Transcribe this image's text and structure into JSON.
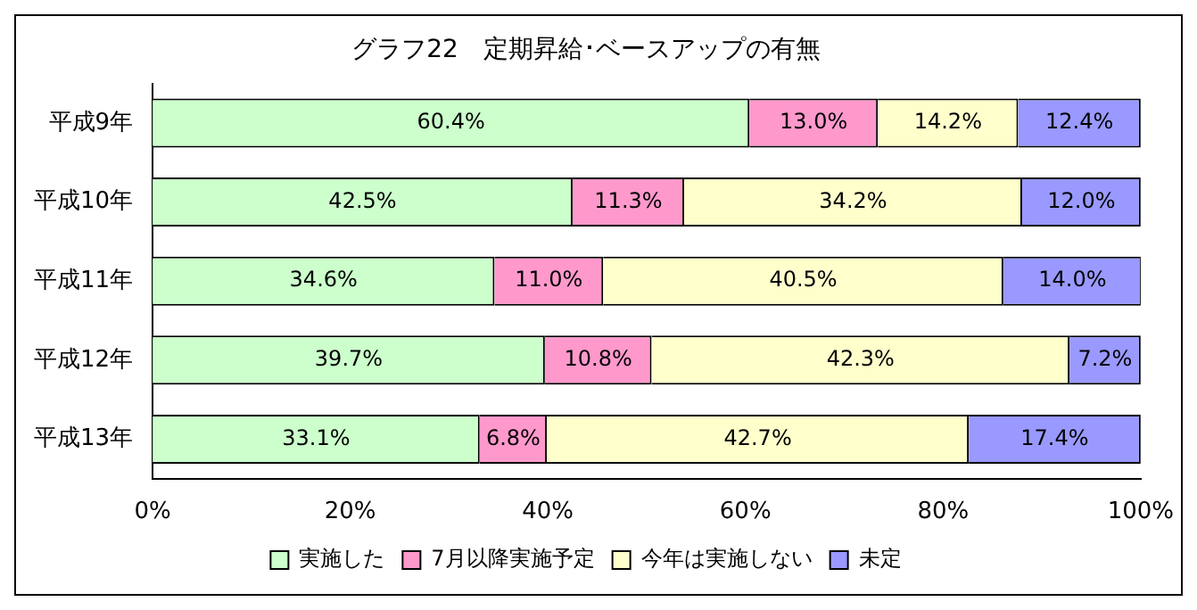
{
  "chart_data": {
    "type": "bar",
    "orientation": "horizontal",
    "stacked": true,
    "title": "グラフ22　定期昇給･ベースアップの有無",
    "categories": [
      "平成9年",
      "平成10年",
      "平成11年",
      "平成12年",
      "平成13年"
    ],
    "series": [
      {
        "name": "実施した",
        "color": "#ccffcc",
        "values": [
          60.4,
          42.5,
          34.6,
          39.7,
          33.1
        ],
        "value_labels": [
          "60.4%",
          "42.5%",
          "34.6%",
          "39.7%",
          "33.1%"
        ]
      },
      {
        "name": "7月以降実施予定",
        "color": "#ff99cc",
        "values": [
          13.0,
          11.3,
          11.0,
          10.8,
          6.8
        ],
        "value_labels": [
          "13.0%",
          "11.3%",
          "11.0%",
          "10.8%",
          "6.8%"
        ]
      },
      {
        "name": "今年は実施しない",
        "color": "#ffffcc",
        "values": [
          14.2,
          34.2,
          40.5,
          42.3,
          42.7
        ],
        "value_labels": [
          "14.2%",
          "34.2%",
          "40.5%",
          "42.3%",
          "42.7%"
        ]
      },
      {
        "name": "未定",
        "color": "#9999ff",
        "values": [
          12.4,
          12.0,
          14.0,
          7.2,
          17.4
        ],
        "value_labels": [
          "12.4%",
          "12.0%",
          "14.0%",
          "7.2%",
          "17.4%"
        ]
      }
    ],
    "xlim": [
      0,
      100
    ],
    "xticks": [
      {
        "value": 0,
        "label": "0%"
      },
      {
        "value": 20,
        "label": "20%"
      },
      {
        "value": 40,
        "label": "40%"
      },
      {
        "value": 60,
        "label": "60%"
      },
      {
        "value": 80,
        "label": "80%"
      },
      {
        "value": 100,
        "label": "100%"
      }
    ],
    "grid": false,
    "legend": "bottom"
  }
}
